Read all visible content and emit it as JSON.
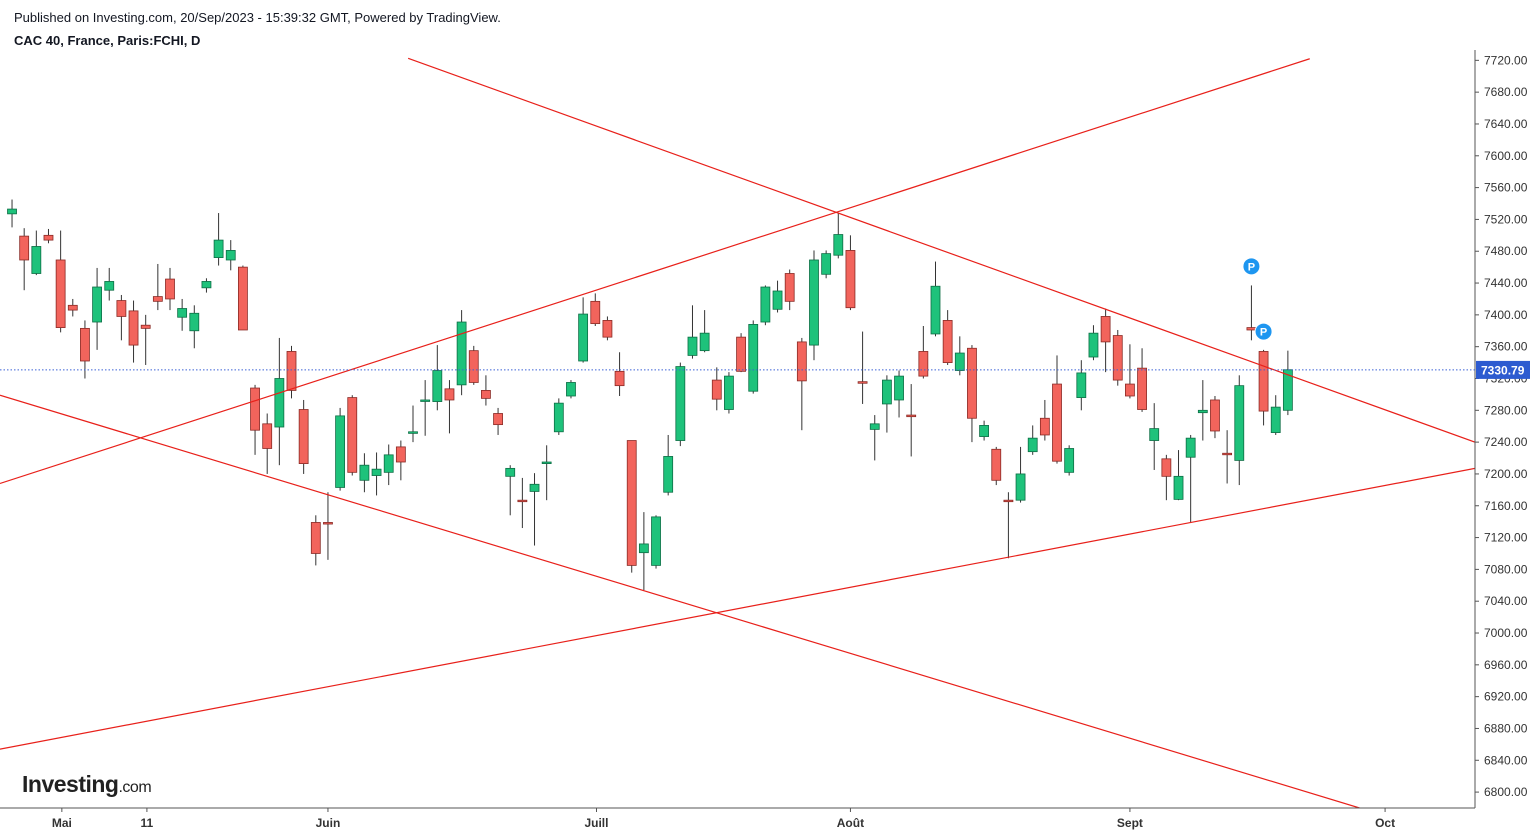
{
  "header": {
    "published": "Published on Investing.com, 20/Sep/2023 - 15:39:32 GMT, Powered by TradingView.",
    "symbol": "CAC 40, France, Paris:FCHI, D"
  },
  "logo": {
    "brand": "Investing",
    "suffix": ".com"
  },
  "chart_data": {
    "type": "candlestick",
    "up_color": "#1ec27b",
    "down_color": "#f2645c",
    "line_color": "#e8201a",
    "xlim": [
      -0.99,
      120.4
    ],
    "ylim": [
      6780,
      7733
    ],
    "xticks": [
      {
        "value": 4.1,
        "label": "Mai"
      },
      {
        "value": 11.1,
        "label": "11"
      },
      {
        "value": 26,
        "label": "Juin"
      },
      {
        "value": 48.1,
        "label": "Juill"
      },
      {
        "value": 69,
        "label": "Août"
      },
      {
        "value": 92,
        "label": "Sept"
      },
      {
        "value": 113,
        "label": "Oct"
      }
    ],
    "yticks": [
      {
        "value": 6800,
        "label": "6800.00"
      },
      {
        "value": 6840,
        "label": "6840.00"
      },
      {
        "value": 6880,
        "label": "6880.00"
      },
      {
        "value": 6920,
        "label": "6920.00"
      },
      {
        "value": 6960,
        "label": "6960.00"
      },
      {
        "value": 7000,
        "label": "7000.00"
      },
      {
        "value": 7040,
        "label": "7040.00"
      },
      {
        "value": 7080,
        "label": "7080.00"
      },
      {
        "value": 7120,
        "label": "7120.00"
      },
      {
        "value": 7160,
        "label": "7160.00"
      },
      {
        "value": 7200,
        "label": "7200.00"
      },
      {
        "value": 7240,
        "label": "7240.00"
      },
      {
        "value": 7280,
        "label": "7280.00"
      },
      {
        "value": 7320,
        "label": "7320.00"
      },
      {
        "value": 7360,
        "label": "7360.00"
      },
      {
        "value": 7400,
        "label": "7400.00"
      },
      {
        "value": 7440,
        "label": "7440.00"
      },
      {
        "value": 7480,
        "label": "7480.00"
      },
      {
        "value": 7520,
        "label": "7520.00"
      },
      {
        "value": 7560,
        "label": "7560.00"
      },
      {
        "value": 7600,
        "label": "7600.00"
      },
      {
        "value": 7640,
        "label": "7640.00"
      },
      {
        "value": 7680,
        "label": "7680.00"
      },
      {
        "value": 7720,
        "label": "7720.00"
      }
    ],
    "last_price": 7330.79,
    "open": [
      7527,
      7499,
      7452,
      7500,
      7469,
      7412,
      7383,
      7391,
      7431,
      7418,
      7405,
      7387,
      7423,
      7445,
      7397,
      7380,
      7434,
      7472,
      7469,
      7460,
      7308,
      7263,
      7259,
      7354,
      7281,
      7139,
      7139,
      7183,
      7296,
      7192,
      7198,
      7202,
      7234,
      7251,
      7292,
      7291,
      7307,
      7312,
      7355,
      7305,
      7276,
      7197,
      7167,
      7178,
      7213,
      7253,
      7298,
      7342,
      7417,
      7393,
      7329,
      7242,
      7101,
      7085,
      7177,
      7242,
      7349,
      7355,
      7318,
      7281,
      7372,
      7304,
      7391,
      7407,
      7452,
      7366,
      7362,
      7451,
      7475,
      7481,
      7316,
      7256,
      7288,
      7293,
      7274,
      7354,
      7376,
      7393,
      7330,
      7358,
      7247,
      7231,
      7167,
      7167,
      7228,
      7270,
      7313,
      7202,
      7296,
      7347,
      7398,
      7374,
      7313,
      7333,
      7242,
      7219,
      7168,
      7221,
      7277,
      7293,
      7226,
      7217,
      7384,
      7354,
      7252,
      7280
    ],
    "high": [
      7545,
      7509,
      7506,
      7508,
      7506,
      7420,
      7393,
      7459,
      7459,
      7425,
      7418,
      7400,
      7464,
      7459,
      7420,
      7412,
      7446,
      7528,
      7494,
      7462,
      7312,
      7276,
      7371,
      7361,
      7293,
      7148,
      7177,
      7283,
      7299,
      7226,
      7227,
      7237,
      7242,
      7286,
      7318,
      7362,
      7318,
      7406,
      7361,
      7324,
      7283,
      7211,
      7195,
      7201,
      7236,
      7295,
      7318,
      7422,
      7427,
      7398,
      7353,
      7242,
      7152,
      7148,
      7249,
      7340,
      7412,
      7406,
      7334,
      7328,
      7377,
      7393,
      7437,
      7443,
      7457,
      7371,
      7481,
      7481,
      7528,
      7500,
      7379,
      7274,
      7324,
      7330,
      7313,
      7386,
      7467,
      7406,
      7373,
      7362,
      7267,
      7234,
      7177,
      7234,
      7261,
      7293,
      7349,
      7236,
      7343,
      7387,
      7408,
      7381,
      7363,
      7358,
      7289,
      7224,
      7230,
      7249,
      7318,
      7298,
      7255,
      7324,
      7437,
      7356,
      7299,
      7355
    ],
    "low": [
      7510,
      7431,
      7450,
      7490,
      7378,
      7398,
      7320,
      7356,
      7418,
      7368,
      7340,
      7337,
      7406,
      7406,
      7380,
      7358,
      7428,
      7462,
      7456,
      7381,
      7224,
      7200,
      7211,
      7295,
      7200,
      7085,
      7092,
      7179,
      7198,
      7177,
      7173,
      7186,
      7192,
      7240,
      7248,
      7280,
      7251,
      7299,
      7312,
      7286,
      7249,
      7148,
      7132,
      7110,
      7167,
      7249,
      7295,
      7340,
      7386,
      7368,
      7298,
      7076,
      7054,
      7081,
      7173,
      7235,
      7345,
      7353,
      7280,
      7276,
      7328,
      7301,
      7387,
      7403,
      7406,
      7255,
      7343,
      7446,
      7471,
      7406,
      7288,
      7217,
      7252,
      7271,
      7222,
      7320,
      7373,
      7337,
      7324,
      7240,
      7242,
      7186,
      7094,
      7164,
      7224,
      7242,
      7213,
      7198,
      7280,
      7343,
      7328,
      7311,
      7295,
      7278,
      7205,
      7167,
      7167,
      7139,
      7242,
      7245,
      7188,
      7186,
      7368,
      7261,
      7249,
      7274
    ],
    "close": [
      7533,
      7469,
      7486,
      7494,
      7384,
      7406,
      7342,
      7435,
      7442,
      7398,
      7362,
      7383,
      7417,
      7420,
      7408,
      7402,
      7442,
      7494,
      7481,
      7381,
      7255,
      7232,
      7320,
      7305,
      7213,
      7100,
      7137,
      7273,
      7202,
      7211,
      7206,
      7224,
      7215,
      7253,
      7293,
      7330,
      7293,
      7391,
      7315,
      7295,
      7262,
      7207,
      7166,
      7187,
      7215,
      7289,
      7315,
      7401,
      7389,
      7372,
      7311,
      7085,
      7112,
      7146,
      7222,
      7335,
      7372,
      7377,
      7294,
      7323,
      7329,
      7388,
      7435,
      7430,
      7417,
      7317,
      7469,
      7477,
      7501,
      7409,
      7314,
      7263,
      7318,
      7323,
      7272,
      7323,
      7436,
      7340,
      7352,
      7270,
      7261,
      7192,
      7166,
      7200,
      7245,
      7249,
      7216,
      7232,
      7327,
      7377,
      7366,
      7318,
      7298,
      7281,
      7257,
      7197,
      7197,
      7245,
      7280,
      7254,
      7225,
      7311,
      7381,
      7279,
      7284,
      7331
    ],
    "trendlines": [
      [
        [
          32.6,
          7722.5
        ],
        [
          120.4,
          7240
        ]
      ],
      [
        [
          -0.99,
          7188
        ],
        [
          106.8,
          7722
        ]
      ],
      [
        [
          -0.99,
          7299
        ],
        [
          110.9,
          6780
        ]
      ],
      [
        [
          -0.99,
          6854
        ],
        [
          120.4,
          7207
        ]
      ]
    ],
    "markers": [
      {
        "label": "P",
        "x": 102,
        "y": 7461
      },
      {
        "label": "P",
        "x": 103,
        "y": 7379
      }
    ]
  }
}
